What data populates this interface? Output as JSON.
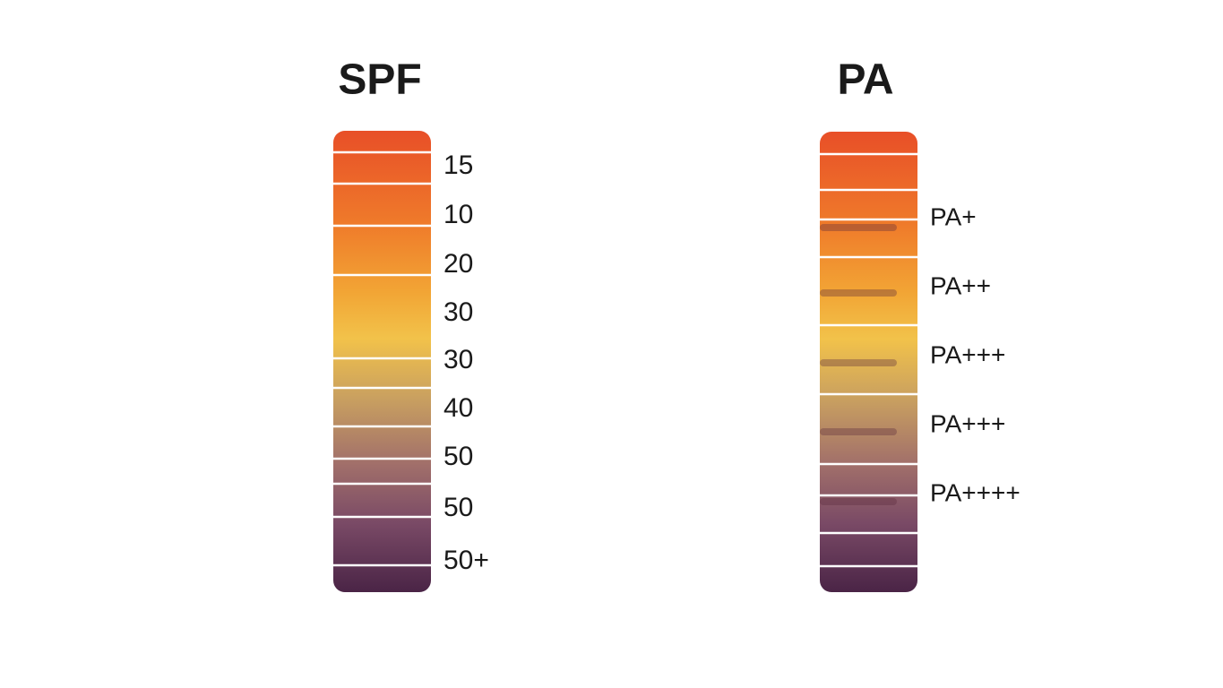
{
  "spf": {
    "title": "SPF",
    "labels": [
      "15",
      "10",
      "20",
      "30",
      "30",
      "40",
      "50",
      "50",
      "50+"
    ]
  },
  "pa": {
    "title": "PA",
    "labels": [
      "PA+",
      "PA++",
      "PA+++",
      "PA+++",
      "PA++++"
    ]
  }
}
